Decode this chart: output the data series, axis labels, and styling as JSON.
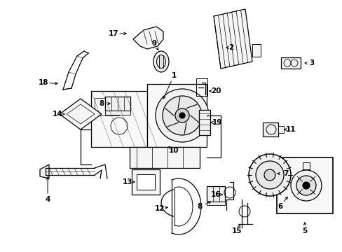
{
  "bg_color": "#ffffff",
  "fig_width": 4.89,
  "fig_height": 3.6,
  "dpi": 100,
  "lw": 0.9
}
